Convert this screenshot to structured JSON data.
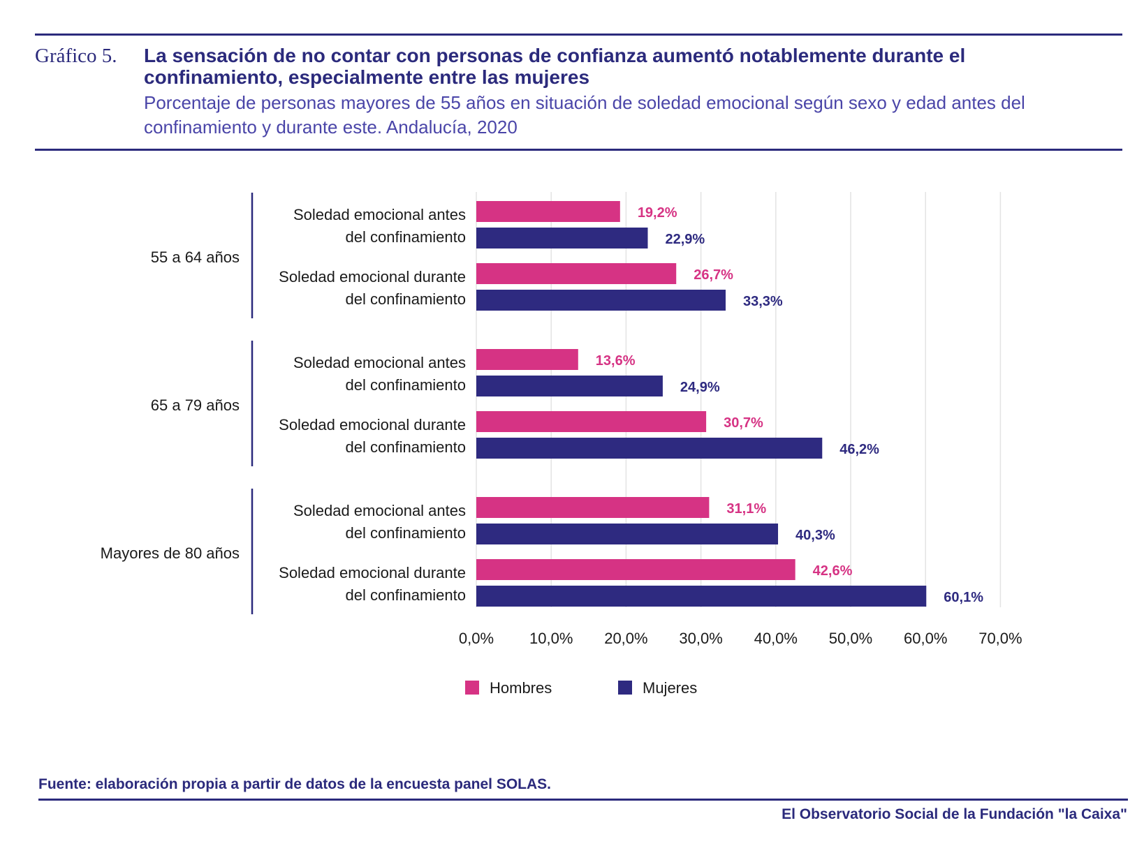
{
  "header": {
    "chart_number": "Gráfico 5.",
    "title": "La sensación de no contar con personas de confianza aumentó notablemente durante el confinamiento, especialmente entre las mujeres",
    "subtitle": "Porcentaje de personas mayores de 55 años en situación de soledad emocional según sexo y edad antes del confinamiento y durante este. Andalucía, 2020"
  },
  "footer": {
    "source": "Fuente:  elaboración propia a partir de datos de la encuesta panel SOLAS.",
    "publisher": "El Observatorio Social de la Fundación \"la Caixa\""
  },
  "colors": {
    "hombres": "#d63384",
    "mujeres": "#2e2a80",
    "axis": "#2b2a7c",
    "grid": "#e3e3e3"
  },
  "chart_data": {
    "type": "bar",
    "orientation": "horizontal",
    "title": "La sensación de no contar con personas de confianza aumentó notablemente durante el confinamiento, especialmente entre las mujeres",
    "groups": [
      {
        "label": "55 a 64 años",
        "categories": [
          {
            "label_lines": [
              "Soledad emocional antes",
              "del confinamiento"
            ],
            "hombres": 19.2,
            "mujeres": 22.9,
            "hombres_label": "19,2%",
            "mujeres_label": "22,9%"
          },
          {
            "label_lines": [
              "Soledad emocional durante",
              "del confinamiento"
            ],
            "hombres": 26.7,
            "mujeres": 33.3,
            "hombres_label": "26,7%",
            "mujeres_label": "33,3%"
          }
        ]
      },
      {
        "label": "65 a 79 años",
        "categories": [
          {
            "label_lines": [
              "Soledad emocional antes",
              "del confinamiento"
            ],
            "hombres": 13.6,
            "mujeres": 24.9,
            "hombres_label": "13,6%",
            "mujeres_label": "24,9%"
          },
          {
            "label_lines": [
              "Soledad emocional durante",
              "del confinamiento"
            ],
            "hombres": 30.7,
            "mujeres": 46.2,
            "hombres_label": "30,7%",
            "mujeres_label": "46,2%"
          }
        ]
      },
      {
        "label": "Mayores de 80 años",
        "categories": [
          {
            "label_lines": [
              "Soledad emocional antes",
              "del confinamiento"
            ],
            "hombres": 31.1,
            "mujeres": 40.3,
            "hombres_label": "31,1%",
            "mujeres_label": "40,3%"
          },
          {
            "label_lines": [
              "Soledad emocional durante",
              "del confinamiento"
            ],
            "hombres": 42.6,
            "mujeres": 60.1,
            "hombres_label": "42,6%",
            "mujeres_label": "60,1%"
          }
        ]
      }
    ],
    "series": [
      {
        "name": "Hombres",
        "key": "hombres"
      },
      {
        "name": "Mujeres",
        "key": "mujeres"
      }
    ],
    "xlim": [
      0,
      70
    ],
    "xticks": [
      0,
      10,
      20,
      30,
      40,
      50,
      60,
      70
    ],
    "xtick_labels": [
      "0,0%",
      "10,0%",
      "20,0%",
      "30,0%",
      "40,0%",
      "50,0%",
      "60,0%",
      "70,0%"
    ],
    "grid": true,
    "legend": "bottom-center"
  }
}
